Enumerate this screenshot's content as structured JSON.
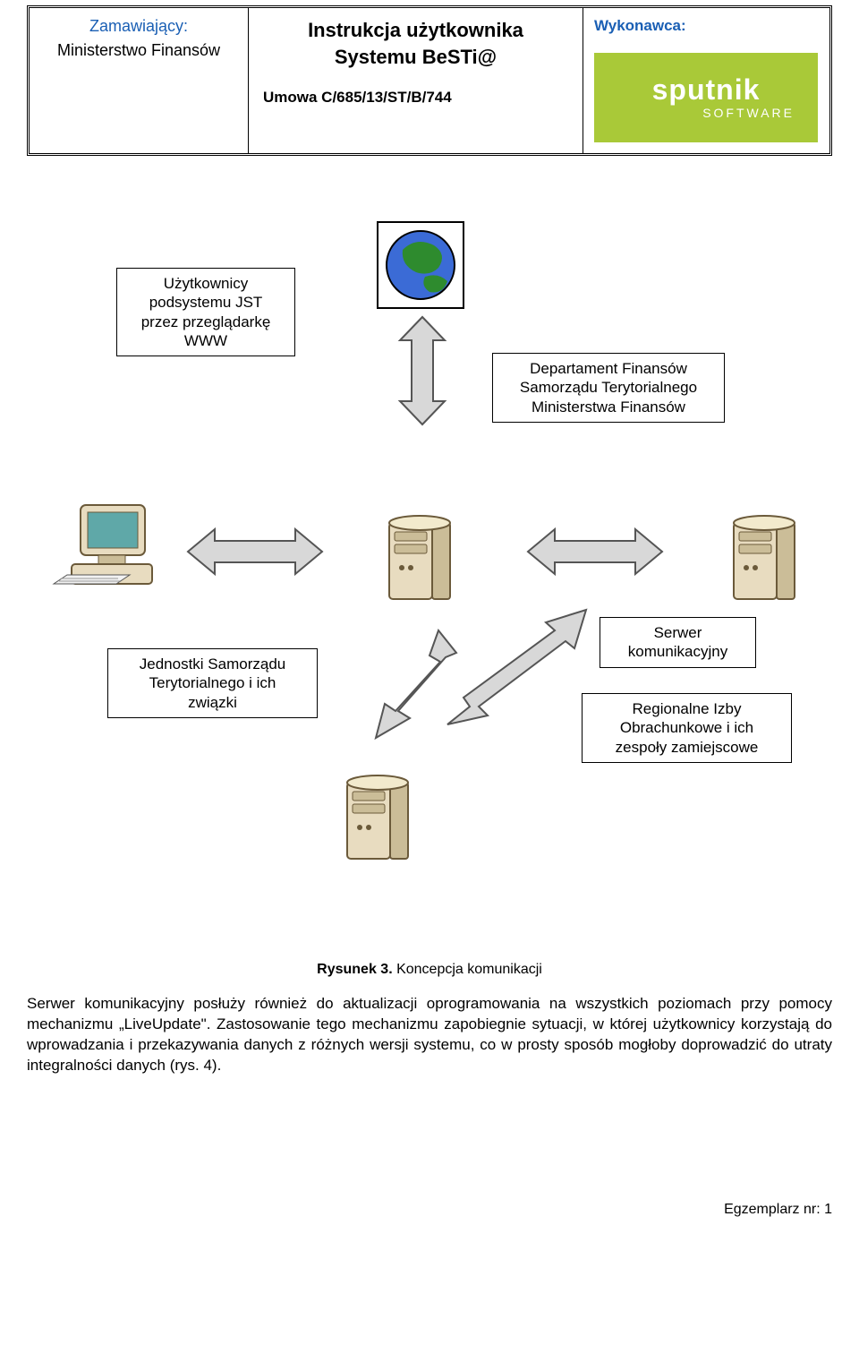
{
  "header": {
    "client_label": "Zamawiający:",
    "client_name": "Ministerstwo Finansów",
    "title_line1": "Instrukcja użytkownika",
    "title_line2": "Systemu BeSTi@",
    "contract": "Umowa C/685/13/ST/B/744",
    "contractor_label": "Wykonawca:",
    "logo_brand": "sputnik",
    "logo_sub": "SOFTWARE",
    "logo_bg": "#a9c938"
  },
  "diagram": {
    "labels": {
      "www_users": "Użytkownicy\npodsystemu JST\nprzez przeglądarkę\nWWW",
      "dept": "Departament Finansów\nSamorządu Terytorialnego\nMinisterstwa Finansów",
      "jst": "Jednostki Samorządu\nTerytorialnego i ich\nzwiązki",
      "comm_server": "Serwer\nkomunikacyjny",
      "rio": "Regionalne Izby\nObrachunkowe i ich\nzespoły zamiejscowe"
    },
    "colors": {
      "server_fill": "#e8dcc0",
      "server_stroke": "#6b5a3a",
      "server_dark": "#cbbd98",
      "arrow_fill": "#d8d8d8",
      "arrow_stroke": "#555555",
      "globe_water": "#3b6bd6",
      "globe_land": "#2e8b2e",
      "monitor_screen": "#5fa8a8"
    },
    "caption_label": "Rysunek 3.",
    "caption_text": " Koncepcja komunikacji"
  },
  "paragraph": "Serwer komunikacyjny posłuży również do aktualizacji oprogramowania na wszystkich poziomach przy pomocy mechanizmu „LiveUpdate\". Zastosowanie tego mechanizmu zapobiegnie sytuacji, w której użytkownicy korzystają do wprowadzania i przekazywania danych z różnych wersji systemu, co w prosty sposób mogłoby doprowadzić do utraty integralności danych (rys. 4).",
  "footer": "Egzemplarz nr: 1"
}
